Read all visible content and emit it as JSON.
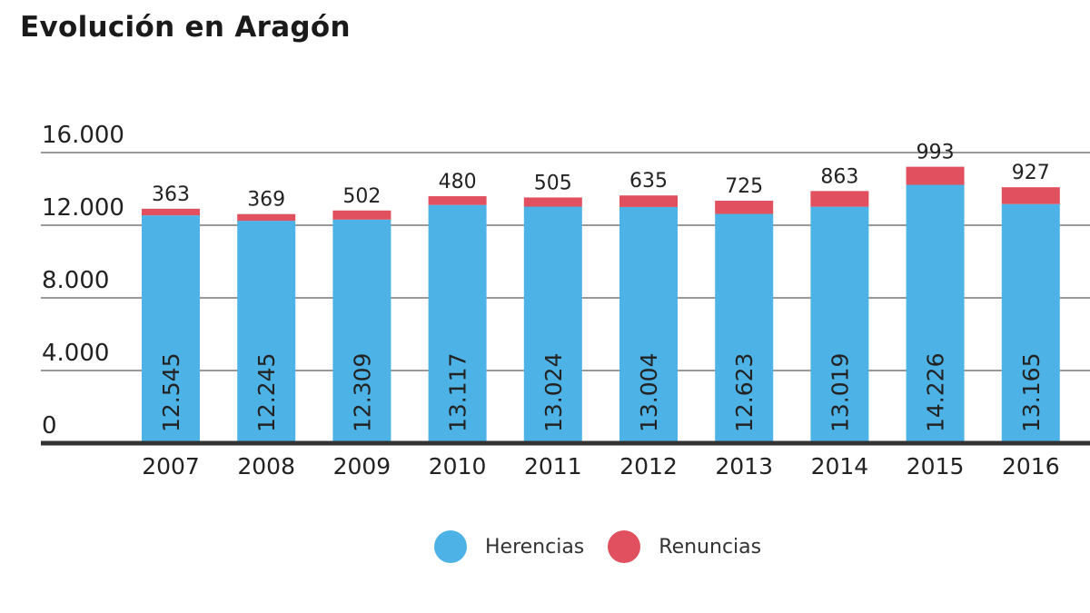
{
  "colors": {
    "herencias": "#4db3e6",
    "renuncias": "#e0505e",
    "grid": "#999999",
    "axis": "#333333",
    "text": "#222222"
  },
  "chart_data": {
    "type": "bar",
    "stacked": true,
    "title": "Evolución en Aragón",
    "categories": [
      "2007",
      "2008",
      "2009",
      "2010",
      "2011",
      "2012",
      "2013",
      "2014",
      "2015",
      "2016"
    ],
    "series": [
      {
        "name": "Herencias",
        "values": [
          12545,
          12245,
          12309,
          13117,
          13024,
          13004,
          12623,
          13019,
          14226,
          13165
        ],
        "labels": [
          "12.545",
          "12.245",
          "12.309",
          "13.117",
          "13.024",
          "13.004",
          "12.623",
          "13.019",
          "14.226",
          "13.165"
        ]
      },
      {
        "name": "Renuncias",
        "values": [
          363,
          369,
          502,
          480,
          505,
          635,
          725,
          863,
          993,
          927
        ],
        "labels": [
          "363",
          "369",
          "502",
          "480",
          "505",
          "635",
          "725",
          "863",
          "993",
          "927"
        ]
      }
    ],
    "yticks": [
      "0",
      "4.000",
      "8.000",
      "12.000",
      "16.000"
    ],
    "ytick_values": [
      0,
      4000,
      8000,
      12000,
      16000
    ],
    "ylim": [
      0,
      16000
    ],
    "grid": true,
    "legend": "bottom-center"
  }
}
